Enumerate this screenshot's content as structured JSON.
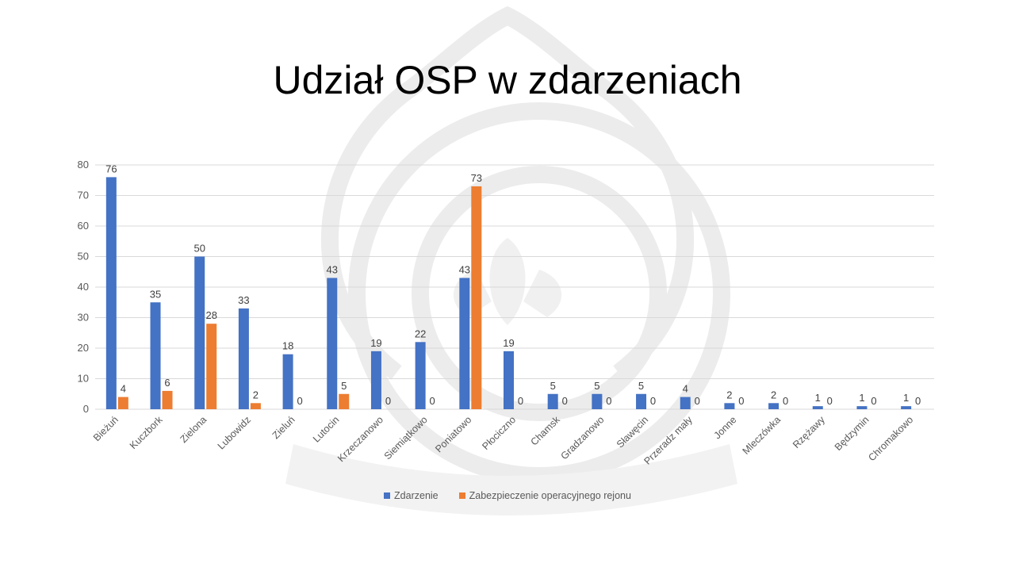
{
  "slide": {
    "title": "Udział OSP w zdarzeniach",
    "watermark": "seal-icon"
  },
  "colors": {
    "series1": "#4472C4",
    "series2": "#ED7D31",
    "grid": "#D9D9D9",
    "axis_text": "#595959",
    "label_text": "#404040"
  },
  "chart_data": {
    "type": "bar",
    "title": "Udział OSP w zdarzeniach",
    "xlabel": "",
    "ylabel": "",
    "ylim": [
      0,
      80
    ],
    "yticks": [
      0,
      10,
      20,
      30,
      40,
      50,
      60,
      70,
      80
    ],
    "grid": true,
    "legend_position": "bottom",
    "categories": [
      "Bieżuń",
      "Kuczbork",
      "Zielona",
      "Lubowidz",
      "Zieluń",
      "Lutocin",
      "Krzeczanowo",
      "Siemiątkowo",
      "Poniatowo",
      "Płociczno",
      "Chamsk",
      "Gradzanowo",
      "Sławęcin",
      "Przeradz mały",
      "Jonne",
      "Mleczówka",
      "Rzężawy",
      "Będzymin",
      "Chromakowo"
    ],
    "series": [
      {
        "name": "Zdarzenie",
        "color": "#4472C4",
        "values": [
          76,
          35,
          50,
          33,
          18,
          43,
          19,
          22,
          43,
          19,
          5,
          5,
          5,
          4,
          2,
          2,
          1,
          1,
          1
        ]
      },
      {
        "name": "Zabezpieczenie operacyjnego rejonu",
        "color": "#ED7D31",
        "values": [
          4,
          6,
          28,
          2,
          0,
          5,
          0,
          0,
          73,
          0,
          0,
          0,
          0,
          0,
          0,
          0,
          0,
          0,
          0
        ]
      }
    ]
  }
}
